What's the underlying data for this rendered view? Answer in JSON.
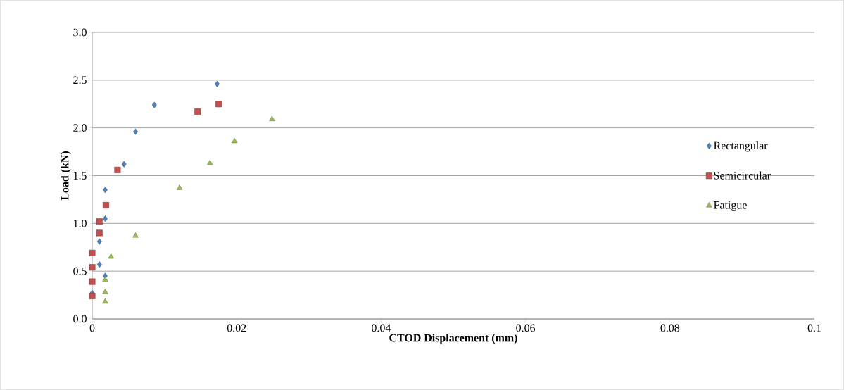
{
  "chart_data": {
    "type": "scatter",
    "xlabel": "CTOD Displacement (mm)",
    "ylabel": "Load (kN)",
    "xlim": [
      0,
      0.1
    ],
    "xticks": [
      0,
      0.02,
      0.04,
      0.06,
      0.08,
      0.1
    ],
    "ylim": [
      0,
      3
    ],
    "yticks": [
      {
        "value": 0,
        "label": "0.0"
      },
      {
        "value": 0.5,
        "label": "0.5"
      },
      {
        "value": 1,
        "label": "1.0"
      },
      {
        "value": 1.5,
        "label": "1.5"
      },
      {
        "value": 2,
        "label": "2.0"
      },
      {
        "value": 2.5,
        "label": "2.5"
      },
      {
        "value": 3,
        "label": "3.0"
      }
    ],
    "grid": "y",
    "legend": "right",
    "series": [
      {
        "name": "Rectangular",
        "color": "#4f81bd",
        "marker": "diamond",
        "x": [
          0.0173,
          0.0086,
          0.006,
          0.0044,
          0.0018,
          0.0018,
          0.001,
          0.001,
          0.0018,
          0
        ],
        "values": [
          2.46,
          2.24,
          1.96,
          1.62,
          1.35,
          1.05,
          0.81,
          0.57,
          0.45,
          0.27
        ]
      },
      {
        "name": "Semicircular",
        "color": "#c0504d",
        "marker": "square",
        "x": [
          0.0175,
          0.0146,
          0.0035,
          0.0019,
          0.001,
          0.001,
          0,
          0,
          0,
          0
        ],
        "values": [
          2.25,
          2.17,
          1.56,
          1.19,
          1.02,
          0.9,
          0.69,
          0.54,
          0.39,
          0.24
        ]
      },
      {
        "name": "Fatigue",
        "color": "#9bbb59",
        "marker": "triangle",
        "x": [
          0.0249,
          0.0197,
          0.0163,
          0.0121,
          0.006,
          0.0026,
          0.0018,
          0.0018,
          0.0018
        ],
        "values": [
          2.09,
          1.86,
          1.63,
          1.37,
          0.87,
          0.65,
          0.41,
          0.28,
          0.18
        ]
      }
    ]
  }
}
